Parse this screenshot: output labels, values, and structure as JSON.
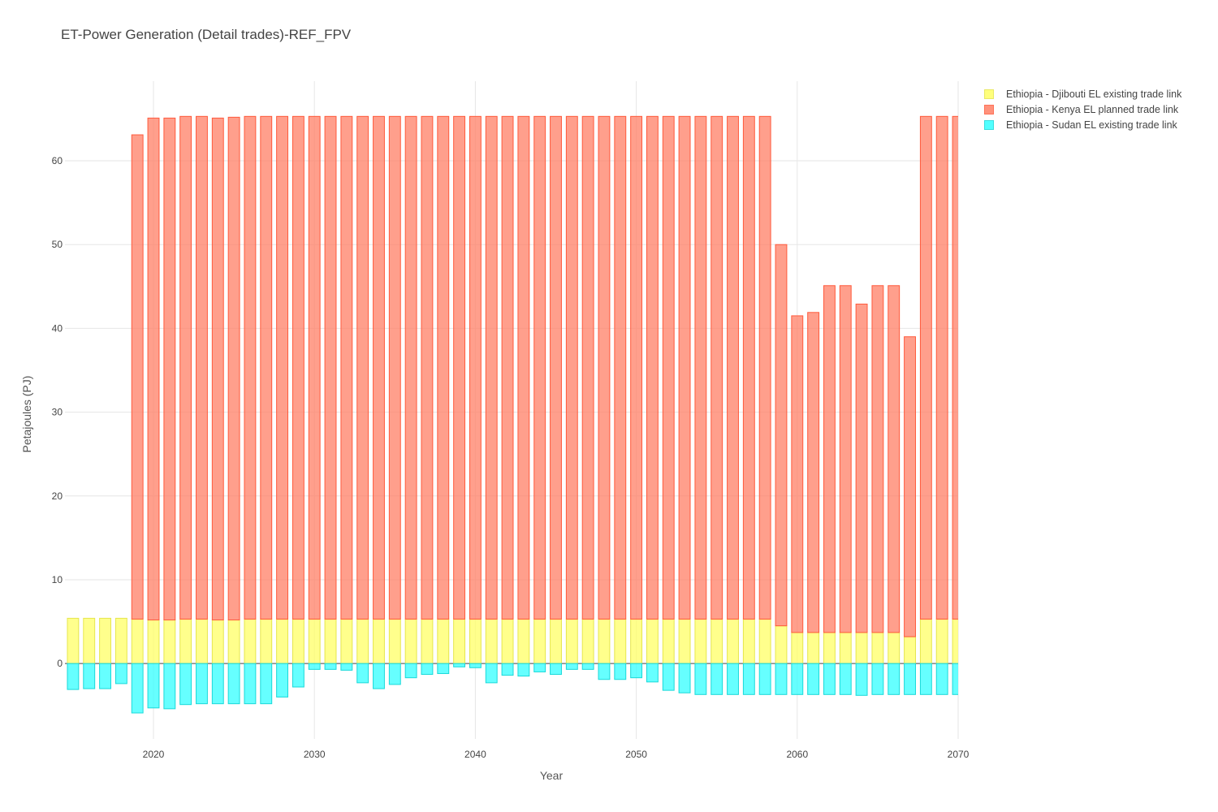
{
  "chart_data": {
    "type": "bar",
    "title": "ET-Power Generation (Detail trades)-REF_FPV",
    "xlabel": "Year",
    "ylabel": "Petajoules (PJ)",
    "x_ticks": [
      2020,
      2030,
      2040,
      2050,
      2060,
      2070
    ],
    "y_ticks": [
      0,
      10,
      20,
      30,
      40,
      50,
      60
    ],
    "xlim": [
      2014.5,
      2070
    ],
    "ylim": [
      -9,
      69.5
    ],
    "grid": true,
    "barmode": "relative",
    "legend_position": "top-right",
    "years": [
      2015,
      2016,
      2017,
      2018,
      2019,
      2020,
      2021,
      2022,
      2023,
      2024,
      2025,
      2026,
      2027,
      2028,
      2029,
      2030,
      2031,
      2032,
      2033,
      2034,
      2035,
      2036,
      2037,
      2038,
      2039,
      2040,
      2041,
      2042,
      2043,
      2044,
      2045,
      2046,
      2047,
      2048,
      2049,
      2050,
      2051,
      2052,
      2053,
      2054,
      2055,
      2056,
      2057,
      2058,
      2059,
      2060,
      2061,
      2062,
      2063,
      2064,
      2065,
      2066,
      2067,
      2068,
      2069,
      2070
    ],
    "series": [
      {
        "name": "Ethiopia - Djibouti EL existing trade link",
        "fill": "#ffff66",
        "stroke": "#e6e64d",
        "values": [
          5.4,
          5.4,
          5.4,
          5.4,
          5.3,
          5.2,
          5.2,
          5.3,
          5.3,
          5.2,
          5.2,
          5.3,
          5.3,
          5.3,
          5.3,
          5.3,
          5.3,
          5.3,
          5.3,
          5.3,
          5.3,
          5.3,
          5.3,
          5.3,
          5.3,
          5.3,
          5.3,
          5.3,
          5.3,
          5.3,
          5.3,
          5.3,
          5.3,
          5.3,
          5.3,
          5.3,
          5.3,
          5.3,
          5.3,
          5.3,
          5.3,
          5.3,
          5.3,
          5.3,
          4.5,
          3.7,
          3.7,
          3.7,
          3.7,
          3.7,
          3.7,
          3.7,
          3.2,
          5.3,
          5.3,
          5.3
        ]
      },
      {
        "name": "Ethiopia - Kenya EL planned trade link",
        "fill": "#ff7f66",
        "stroke": "#ff5a3c",
        "values": [
          0,
          0,
          0,
          0,
          57.8,
          59.9,
          59.9,
          60.0,
          60.0,
          59.9,
          60.0,
          60.0,
          60.0,
          60.0,
          60.0,
          60.0,
          60.0,
          60.0,
          60.0,
          60.0,
          60.0,
          60.0,
          60.0,
          60.0,
          60.0,
          60.0,
          60.0,
          60.0,
          60.0,
          60.0,
          60.0,
          60.0,
          60.0,
          60.0,
          60.0,
          60.0,
          60.0,
          60.0,
          60.0,
          60.0,
          60.0,
          60.0,
          60.0,
          60.0,
          45.5,
          37.8,
          38.2,
          41.4,
          41.4,
          39.2,
          41.4,
          41.4,
          35.8,
          60.0,
          60.0,
          60.0
        ]
      },
      {
        "name": "Ethiopia - Sudan EL existing trade link",
        "fill": "#33ffff",
        "stroke": "#1ad9d9",
        "values": [
          -3.1,
          -3.0,
          -3.0,
          -2.4,
          -5.9,
          -5.3,
          -5.4,
          -4.9,
          -4.8,
          -4.8,
          -4.8,
          -4.8,
          -4.8,
          -4.0,
          -2.8,
          -0.7,
          -0.7,
          -0.8,
          -2.3,
          -3.0,
          -2.5,
          -1.7,
          -1.3,
          -1.2,
          -0.4,
          -0.5,
          -2.3,
          -1.4,
          -1.5,
          -1.0,
          -1.3,
          -0.7,
          -0.7,
          -1.9,
          -1.9,
          -1.7,
          -2.2,
          -3.2,
          -3.5,
          -3.7,
          -3.7,
          -3.7,
          -3.7,
          -3.7,
          -3.7,
          -3.7,
          -3.7,
          -3.7,
          -3.7,
          -3.8,
          -3.7,
          -3.7,
          -3.7,
          -3.7,
          -3.7,
          -3.7
        ]
      }
    ]
  }
}
